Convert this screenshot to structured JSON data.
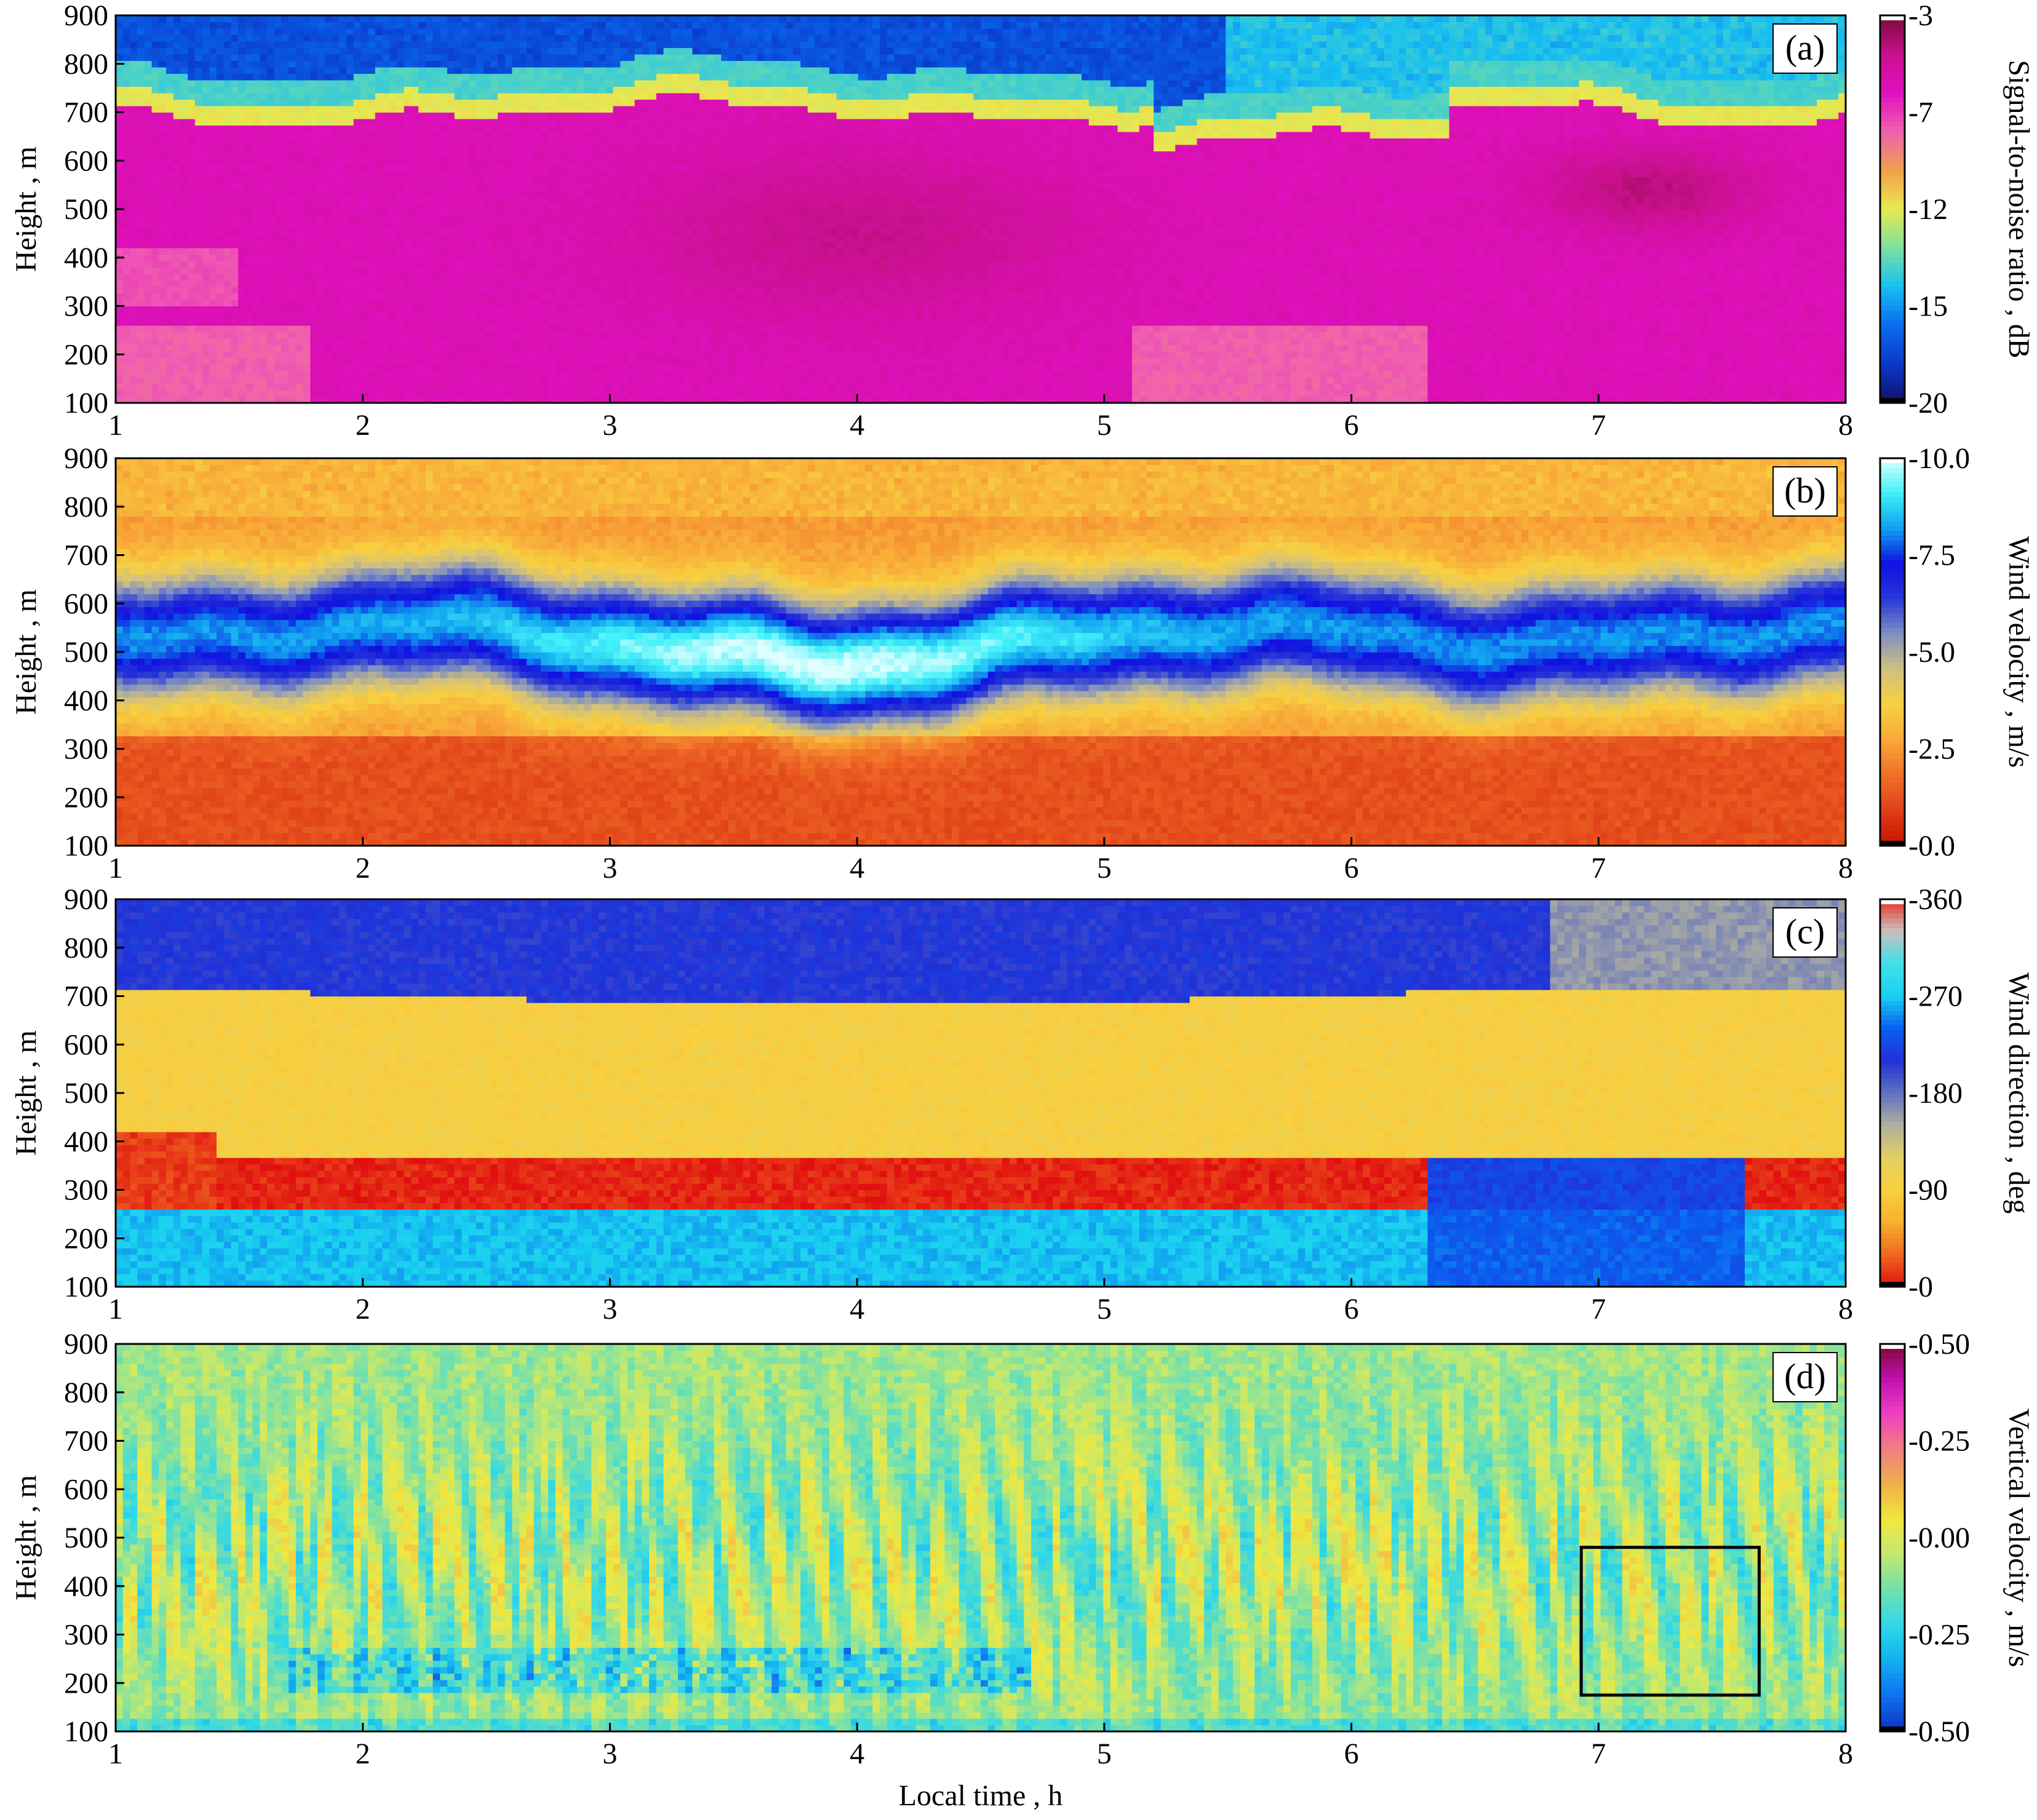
{
  "colormaps": {
    "snr": [
      "#10106a",
      "#0a38c8",
      "#0a6cf0",
      "#18c0f0",
      "#7ce0a0",
      "#e8e850",
      "#f0a048",
      "#f060b0",
      "#e010c0",
      "#c8108c",
      "#7a0a38"
    ],
    "vel": [
      "#c81000",
      "#e04018",
      "#f07028",
      "#f8a838",
      "#f8d040",
      "#d0c080",
      "#8090c0",
      "#2838d8",
      "#1010e0",
      "#10a0f0",
      "#40f0f8",
      "#e0ffff"
    ],
    "dir": [
      "#e01010",
      "#f06820",
      "#f8b030",
      "#f8d040",
      "#e0d060",
      "#b0b0a0",
      "#6070c0",
      "#2030d8",
      "#0a60f0",
      "#18d0f0",
      "#40e0e8",
      "#c8c0c0",
      "#e83020"
    ],
    "vert": [
      "#0a30c0",
      "#1070f0",
      "#10b0f0",
      "#30d8e8",
      "#70e0b0",
      "#c0e870",
      "#f0e840",
      "#f0b048",
      "#f08080",
      "#f040c0",
      "#c010b0",
      "#800830"
    ]
  },
  "chart_data": [
    {
      "type": "heatmap",
      "panel_label": "(a)",
      "xlabel": "",
      "ylabel": "Height , m",
      "colorbar_label": "Signal-to-noise ratio , dB",
      "xlim": [
        1,
        8
      ],
      "ylim": [
        100,
        900
      ],
      "x_ticks": [
        "1",
        "2",
        "3",
        "4",
        "5",
        "6",
        "7",
        "8"
      ],
      "y_ticks": [
        "100",
        "200",
        "300",
        "400",
        "500",
        "600",
        "700",
        "800",
        "900"
      ],
      "colorbar_ticks": [
        "-3",
        "-7",
        "-12",
        "-15",
        "-20"
      ],
      "colorbar_range": [
        -20,
        -3
      ],
      "colormap": "snr"
    },
    {
      "type": "heatmap",
      "panel_label": "(b)",
      "xlabel": "",
      "ylabel": "Height , m",
      "colorbar_label": "Wind velocity , m/s",
      "xlim": [
        1,
        8
      ],
      "ylim": [
        100,
        900
      ],
      "x_ticks": [
        "1",
        "2",
        "3",
        "4",
        "5",
        "6",
        "7",
        "8"
      ],
      "y_ticks": [
        "100",
        "200",
        "300",
        "400",
        "500",
        "600",
        "700",
        "800",
        "900"
      ],
      "colorbar_ticks": [
        "-10.0",
        "-7.5",
        "-5.0",
        "-2.5",
        "-0.0"
      ],
      "colorbar_range": [
        0,
        10
      ],
      "colormap": "vel"
    },
    {
      "type": "heatmap",
      "panel_label": "(c)",
      "xlabel": "",
      "ylabel": "Height , m",
      "colorbar_label": "Wind direction , deg",
      "xlim": [
        1,
        8
      ],
      "ylim": [
        100,
        900
      ],
      "x_ticks": [
        "1",
        "2",
        "3",
        "4",
        "5",
        "6",
        "7",
        "8"
      ],
      "y_ticks": [
        "100",
        "200",
        "300",
        "400",
        "500",
        "600",
        "700",
        "800",
        "900"
      ],
      "colorbar_ticks": [
        "-360",
        "-270",
        "-180",
        "-90",
        "-0"
      ],
      "colorbar_range": [
        0,
        360
      ],
      "colormap": "dir"
    },
    {
      "type": "heatmap",
      "panel_label": "(d)",
      "xlabel": "Local time , h",
      "ylabel": "Height , m",
      "colorbar_label": "Vertical velocity , m/s",
      "xlim": [
        1,
        8
      ],
      "ylim": [
        100,
        900
      ],
      "x_ticks": [
        "1",
        "2",
        "3",
        "4",
        "5",
        "6",
        "7",
        "8"
      ],
      "y_ticks": [
        "100",
        "200",
        "300",
        "400",
        "500",
        "600",
        "700",
        "800",
        "900"
      ],
      "colorbar_ticks": [
        "-0.50",
        "-0.25",
        "-0.00",
        "-0.25",
        "-0.50"
      ],
      "colorbar_range": [
        -0.5,
        0.5
      ],
      "colormap": "vert",
      "highlight_box": {
        "x": [
          6.93,
          7.65
        ],
        "y": [
          175,
          480
        ]
      }
    }
  ]
}
